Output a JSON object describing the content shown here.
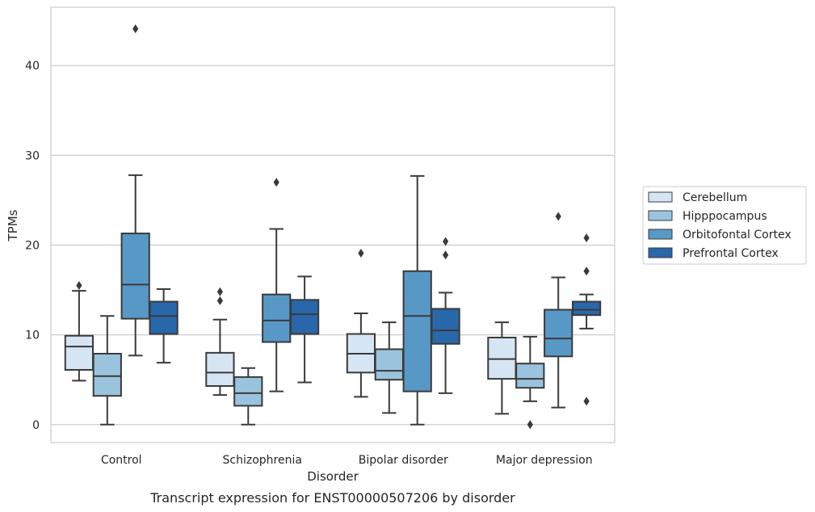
{
  "caption": "Transcript expression for ENST00000507206 by disorder",
  "chart_data": {
    "type": "box",
    "title": "",
    "xlabel": "Disorder",
    "ylabel": "TPMs",
    "ylim": [
      -2,
      46.5
    ],
    "yticks": [
      0,
      10,
      20,
      30,
      40
    ],
    "grid": true,
    "legend_position": "right",
    "categories": [
      "Control",
      "Schizophrenia",
      "Bipolar disorder",
      "Major depression"
    ],
    "series": [
      {
        "name": "Cerebellum",
        "color": "#d6e5f3",
        "boxes": [
          {
            "whisker_low": 4.9,
            "q1": 6.1,
            "median": 8.7,
            "q3": 9.9,
            "whisker_high": 14.9,
            "outliers": [
              15.5
            ]
          },
          {
            "whisker_low": 3.3,
            "q1": 4.3,
            "median": 5.8,
            "q3": 8.0,
            "whisker_high": 11.7,
            "outliers": [
              13.8,
              14.8
            ]
          },
          {
            "whisker_low": 3.1,
            "q1": 5.8,
            "median": 7.9,
            "q3": 10.1,
            "whisker_high": 12.4,
            "outliers": [
              19.1
            ]
          },
          {
            "whisker_low": 1.2,
            "q1": 5.1,
            "median": 7.3,
            "q3": 9.7,
            "whisker_high": 11.4,
            "outliers": []
          }
        ]
      },
      {
        "name": "Hipppocampus",
        "color": "#9ac4de",
        "boxes": [
          {
            "whisker_low": 0.0,
            "q1": 3.2,
            "median": 5.4,
            "q3": 7.9,
            "whisker_high": 12.1,
            "outliers": []
          },
          {
            "whisker_low": 0.0,
            "q1": 2.1,
            "median": 3.5,
            "q3": 5.3,
            "whisker_high": 6.3,
            "outliers": []
          },
          {
            "whisker_low": 1.3,
            "q1": 5.0,
            "median": 6.0,
            "q3": 8.4,
            "whisker_high": 11.4,
            "outliers": []
          },
          {
            "whisker_low": 2.6,
            "q1": 4.1,
            "median": 5.1,
            "q3": 6.8,
            "whisker_high": 9.8,
            "outliers": [
              0.0
            ]
          }
        ]
      },
      {
        "name": "Orbitofontal Cortex",
        "color": "#5898c7",
        "boxes": [
          {
            "whisker_low": 7.7,
            "q1": 11.8,
            "median": 15.6,
            "q3": 21.3,
            "whisker_high": 27.8,
            "outliers": [
              44.1
            ]
          },
          {
            "whisker_low": 3.7,
            "q1": 9.2,
            "median": 11.6,
            "q3": 14.5,
            "whisker_high": 21.8,
            "outliers": [
              27.0
            ]
          },
          {
            "whisker_low": 0.0,
            "q1": 3.7,
            "median": 12.1,
            "q3": 17.1,
            "whisker_high": 27.7,
            "outliers": []
          },
          {
            "whisker_low": 1.9,
            "q1": 7.6,
            "median": 9.6,
            "q3": 12.8,
            "whisker_high": 16.4,
            "outliers": [
              23.2
            ]
          }
        ]
      },
      {
        "name": "Prefrontal Cortex",
        "color": "#2867a9",
        "boxes": [
          {
            "whisker_low": 6.9,
            "q1": 10.1,
            "median": 12.1,
            "q3": 13.7,
            "whisker_high": 15.1,
            "outliers": []
          },
          {
            "whisker_low": 4.7,
            "q1": 10.1,
            "median": 12.3,
            "q3": 13.9,
            "whisker_high": 16.5,
            "outliers": []
          },
          {
            "whisker_low": 3.5,
            "q1": 9.0,
            "median": 10.5,
            "q3": 12.9,
            "whisker_high": 14.7,
            "outliers": [
              18.9,
              20.4
            ]
          },
          {
            "whisker_low": 10.7,
            "q1": 12.2,
            "median": 12.8,
            "q3": 13.7,
            "whisker_high": 14.5,
            "outliers": [
              2.6,
              17.1,
              20.8
            ]
          }
        ]
      }
    ]
  }
}
